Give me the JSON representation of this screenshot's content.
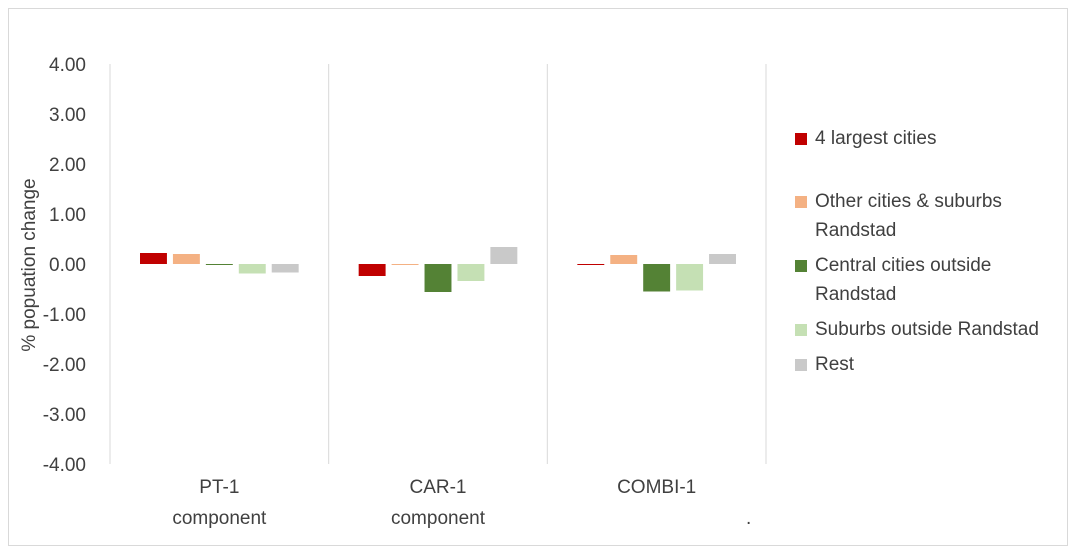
{
  "chart_data": {
    "type": "bar",
    "ylabel": "% popuation change",
    "ylim": [
      -4.0,
      4.0
    ],
    "yticks": [
      "4.00",
      "3.00",
      "2.00",
      "1.00",
      "0.00",
      "-1.00",
      "-2.00",
      "-3.00",
      "-4.00"
    ],
    "ytick_values": [
      4,
      3,
      2,
      1,
      0,
      -1,
      -2,
      -3,
      -4
    ],
    "categories": [
      {
        "line1": "PT-1",
        "line2": "component"
      },
      {
        "line1": "CAR-1",
        "line2": "component"
      },
      {
        "line1": "COMBI-1",
        "line2": "."
      }
    ],
    "series": [
      {
        "name": "4 largest cities",
        "color": "#c00000",
        "values": [
          0.22,
          -0.24,
          -0.01
        ]
      },
      {
        "name": "Other cities & suburbs Randstad",
        "color": "#f4b183",
        "values": [
          0.2,
          -0.02,
          0.18
        ]
      },
      {
        "name": "Central cities outside Randstad",
        "color": "#548235",
        "values": [
          -0.01,
          -0.56,
          -0.55
        ]
      },
      {
        "name": "Suburbs outside Randstad",
        "color": "#c5e0b4",
        "values": [
          -0.19,
          -0.34,
          -0.53
        ]
      },
      {
        "name": "Rest",
        "color": "#c9c9c9",
        "values": [
          -0.17,
          0.34,
          0.2
        ]
      }
    ],
    "legend_position": "right",
    "gridlines": "vertical category separators"
  }
}
